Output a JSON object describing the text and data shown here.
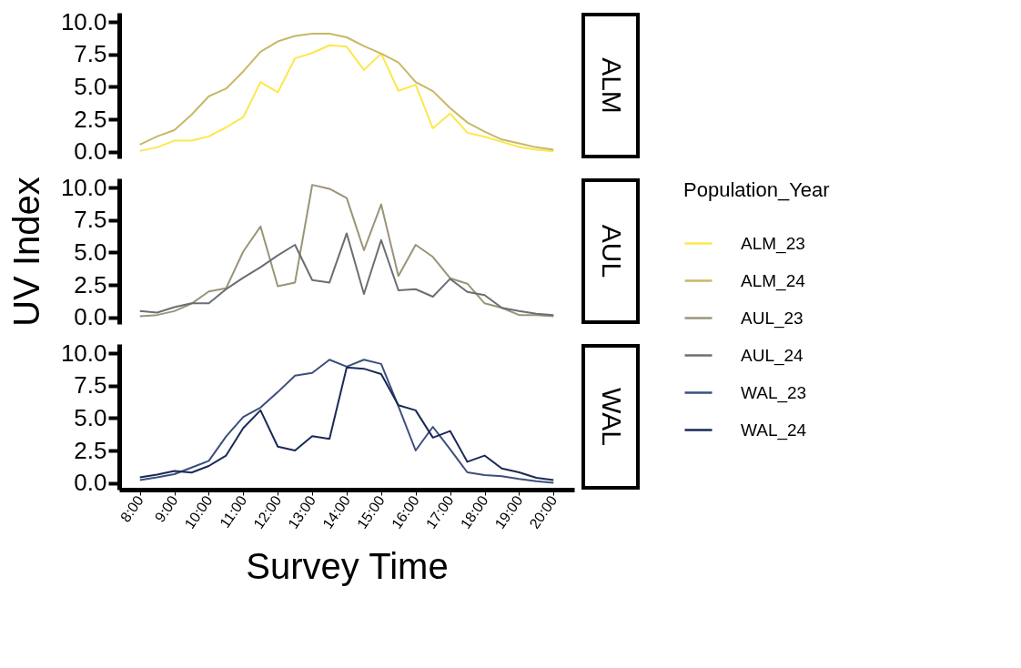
{
  "chart_data": [
    {
      "type": "line",
      "annotations": [
        "ALM"
      ],
      "ylim": [
        -0.5,
        10.7
      ],
      "yticks": [
        {
          "value": 0,
          "label": "0.0"
        },
        {
          "value": 2.5,
          "label": "2.5"
        },
        {
          "value": 5,
          "label": "5.0"
        },
        {
          "value": 7.5,
          "label": "7.5"
        },
        {
          "value": 10,
          "label": "10.0"
        }
      ],
      "tick_labels": "y",
      "grid": false,
      "legend": "right",
      "series": [
        {
          "name": "ALM_23",
          "color": "#fde74c",
          "values": [
            0.07,
            0.35,
            0.86,
            0.86,
            1.19,
            1.88,
            2.67,
            5.37,
            4.58,
            7.19,
            7.6,
            8.2,
            8.09,
            6.3,
            7.56,
            4.7,
            5.16,
            1.81,
            2.95,
            1.47,
            1.16,
            0.77,
            0.37,
            0.16,
            0.05
          ]
        },
        {
          "name": "ALM_24",
          "color": "#c8b866",
          "values": [
            0.56,
            1.19,
            1.67,
            2.86,
            4.28,
            4.86,
            6.19,
            7.7,
            8.49,
            8.91,
            9.09,
            9.09,
            8.81,
            8.14,
            7.56,
            6.88,
            5.37,
            4.67,
            3.37,
            2.26,
            1.56,
            0.95,
            0.65,
            0.35,
            0.16
          ]
        }
      ]
    },
    {
      "type": "line",
      "annotations": [
        "AUL"
      ],
      "ylabel": "UV Index",
      "legend_title": "Population_Year",
      "ylim": [
        -0.5,
        10.7
      ],
      "yticks": [
        {
          "value": 0,
          "label": "0.0"
        },
        {
          "value": 2.5,
          "label": "2.5"
        },
        {
          "value": 5,
          "label": "5.0"
        },
        {
          "value": 7.5,
          "label": "7.5"
        },
        {
          "value": 10,
          "label": "10.0"
        }
      ],
      "tick_labels": "y",
      "grid": false,
      "legend": "right",
      "series": [
        {
          "name": "AUL_23",
          "color": "#9a9478",
          "values": [
            0.09,
            0.19,
            0.49,
            1.07,
            2.0,
            2.25,
            5.08,
            7.0,
            2.41,
            2.69,
            10.2,
            9.9,
            9.19,
            5.17,
            8.7,
            3.2,
            5.59,
            4.66,
            3.02,
            2.6,
            1.09,
            0.74,
            0.19,
            0.19,
            0.09
          ]
        },
        {
          "name": "AUL_24",
          "color": "#6b6e72",
          "values": [
            0.49,
            0.37,
            0.79,
            1.09,
            1.09,
            2.18,
            3.06,
            3.87,
            4.78,
            5.59,
            2.88,
            2.69,
            6.47,
            1.81,
            5.96,
            2.09,
            2.18,
            1.6,
            2.97,
            1.97,
            1.72,
            0.74,
            0.49,
            0.28,
            0.19
          ]
        }
      ]
    },
    {
      "type": "line",
      "annotations": [
        "WAL"
      ],
      "xlabel": "Survey Time",
      "x": [
        8,
        8.5,
        9,
        9.5,
        10,
        10.5,
        11,
        11.5,
        12,
        12.5,
        13,
        13.5,
        14,
        14.5,
        15,
        15.5,
        16,
        16.5,
        17,
        17.5,
        18,
        18.5,
        19,
        19.5,
        20
      ],
      "xlim": [
        7.4,
        20.6
      ],
      "ylim": [
        -0.5,
        10.7
      ],
      "xticks": [
        {
          "value": 8,
          "label": "8:00"
        },
        {
          "value": 9,
          "label": "9:00"
        },
        {
          "value": 10,
          "label": "10:00"
        },
        {
          "value": 11,
          "label": "11:00"
        },
        {
          "value": 12,
          "label": "12:00"
        },
        {
          "value": 13,
          "label": "13:00"
        },
        {
          "value": 14,
          "label": "14:00"
        },
        {
          "value": 15,
          "label": "15:00"
        },
        {
          "value": 16,
          "label": "16:00"
        },
        {
          "value": 17,
          "label": "17:00"
        },
        {
          "value": 18,
          "label": "18:00"
        },
        {
          "value": 19,
          "label": "19:00"
        },
        {
          "value": 20,
          "label": "20:00"
        }
      ],
      "yticks": [
        {
          "value": 0,
          "label": "0.0"
        },
        {
          "value": 2.5,
          "label": "2.5"
        },
        {
          "value": 5,
          "label": "5.0"
        },
        {
          "value": 7.5,
          "label": "7.5"
        },
        {
          "value": 10,
          "label": "10.0"
        }
      ],
      "grid": false,
      "legend": "right",
      "series": [
        {
          "name": "WAL_23",
          "color": "#3d4f7e",
          "values": [
            0.23,
            0.44,
            0.69,
            1.2,
            1.71,
            3.59,
            5.09,
            5.81,
            7.0,
            8.27,
            8.48,
            9.49,
            8.96,
            9.49,
            9.17,
            5.92,
            2.51,
            4.33,
            2.6,
            0.83,
            0.62,
            0.53,
            0.32,
            0.14,
            0.02
          ]
        },
        {
          "name": "WAL_24",
          "color": "#1a2a57",
          "values": [
            0.44,
            0.65,
            0.94,
            0.81,
            1.32,
            2.12,
            4.24,
            5.6,
            2.81,
            2.51,
            3.62,
            3.41,
            8.89,
            8.8,
            8.39,
            5.99,
            5.6,
            3.5,
            4.01,
            1.64,
            2.12,
            1.13,
            0.83,
            0.41,
            0.23
          ]
        }
      ]
    }
  ]
}
